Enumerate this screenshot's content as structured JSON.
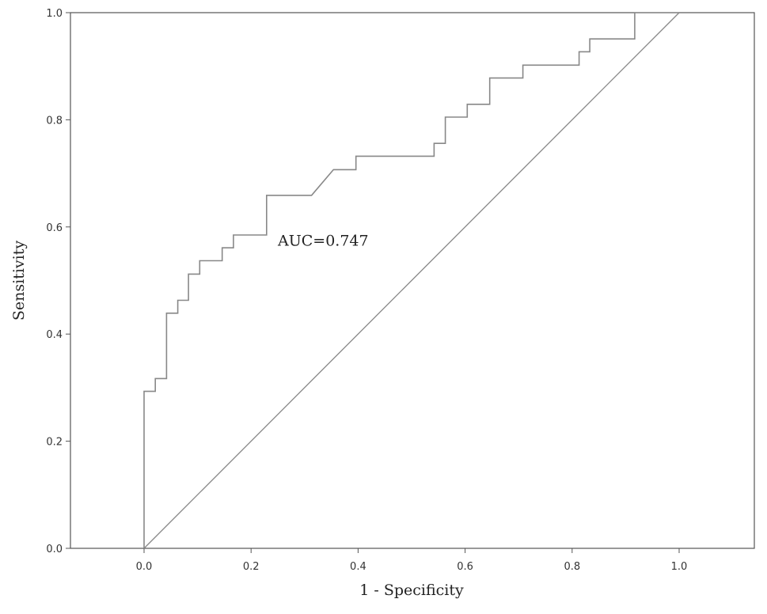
{
  "chart_data": {
    "type": "line",
    "title": "",
    "xlabel": "1 - Specificity",
    "ylabel": "Sensitivity",
    "xlim": [
      -0.13,
      1.13
    ],
    "ylim": [
      0.0,
      1.0
    ],
    "x_ticks": [
      0.0,
      0.2,
      0.4,
      0.6,
      0.8,
      1.0
    ],
    "y_ticks": [
      0.0,
      0.2,
      0.4,
      0.6,
      0.8,
      1.0
    ],
    "x_tick_labels": [
      "0.0",
      "0.2",
      "0.4",
      "0.6",
      "0.8",
      "1.0"
    ],
    "y_tick_labels": [
      "0.0",
      "0.2",
      "0.4",
      "0.6",
      "0.8",
      "1.0"
    ],
    "grid": false,
    "annotation": {
      "text": "AUC=0.747",
      "x": 0.25,
      "y": 0.565
    },
    "series": [
      {
        "style": "step",
        "color": "#888888",
        "x": [
          0.0,
          0.0,
          0.021,
          0.021,
          0.042,
          0.042,
          0.063,
          0.063,
          0.083,
          0.083,
          0.104,
          0.104,
          0.146,
          0.146,
          0.167,
          0.167,
          0.229,
          0.229,
          0.313,
          0.354,
          0.396,
          0.396,
          0.542,
          0.542,
          0.563,
          0.563,
          0.604,
          0.604,
          0.646,
          0.646,
          0.708,
          0.708,
          0.813,
          0.813,
          0.833,
          0.833,
          0.917,
          0.917,
          1.0
        ],
        "y": [
          0.0,
          0.293,
          0.293,
          0.317,
          0.317,
          0.439,
          0.439,
          0.463,
          0.463,
          0.512,
          0.512,
          0.537,
          0.537,
          0.561,
          0.561,
          0.585,
          0.585,
          0.659,
          0.659,
          0.707,
          0.707,
          0.732,
          0.732,
          0.756,
          0.756,
          0.805,
          0.805,
          0.829,
          0.829,
          0.878,
          0.878,
          0.902,
          0.902,
          0.927,
          0.927,
          0.951,
          0.951,
          1.0,
          1.0
        ]
      },
      {
        "style": "reference",
        "color": "#888888",
        "x": [
          0.0,
          1.0
        ],
        "y": [
          0.0,
          1.0
        ]
      }
    ]
  },
  "colors": {
    "axis": "#555555",
    "curve": "#888888",
    "reference": "#888888"
  }
}
